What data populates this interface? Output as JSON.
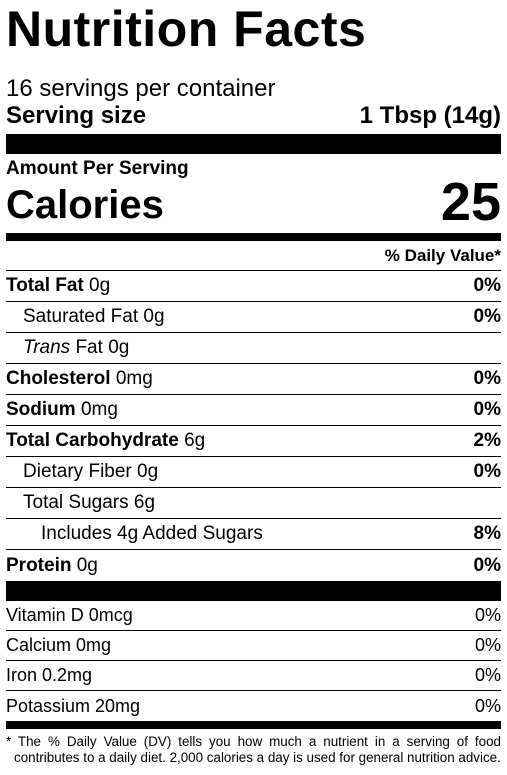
{
  "title": "Nutrition Facts",
  "servings_per_container": "16 servings per container",
  "serving_size": {
    "label": "Serving size",
    "value": "1 Tbsp (14g)"
  },
  "amount_per_serving": "Amount Per Serving",
  "calories": {
    "label": "Calories",
    "value": "25"
  },
  "daily_value_header": "% Daily Value*",
  "nutrients": [
    {
      "name": "Total Fat",
      "amount": "0g",
      "dv": "0%"
    },
    {
      "name": "Saturated Fat",
      "amount": "0g",
      "dv": "0%"
    },
    {
      "name_italic": "Trans",
      "name": "Fat",
      "amount": "0g",
      "dv": ""
    },
    {
      "name": "Cholesterol",
      "amount": "0mg",
      "dv": "0%"
    },
    {
      "name": "Sodium",
      "amount": "0mg",
      "dv": "0%"
    },
    {
      "name": "Total Carbohydrate",
      "amount": "6g",
      "dv": "2%"
    },
    {
      "name": "Dietary Fiber",
      "amount": "0g",
      "dv": "0%"
    },
    {
      "name": "Total Sugars",
      "amount": "6g",
      "dv": ""
    },
    {
      "name": "Includes 4g Added Sugars",
      "amount": "",
      "dv": "8%"
    },
    {
      "name": "Protein",
      "amount": "0g",
      "dv": "0%"
    }
  ],
  "vitamins": [
    {
      "label": "Vitamin D 0mcg",
      "dv": "0%"
    },
    {
      "label": "Calcium 0mg",
      "dv": "0%"
    },
    {
      "label": "Iron 0.2mg",
      "dv": "0%"
    },
    {
      "label": "Potassium 20mg",
      "dv": "0%"
    }
  ],
  "footnote": "* The % Daily Value (DV) tells you how much a nutrient in a serving of food contributes to a daily diet. 2,000 calories a day is used for general nutrition advice."
}
